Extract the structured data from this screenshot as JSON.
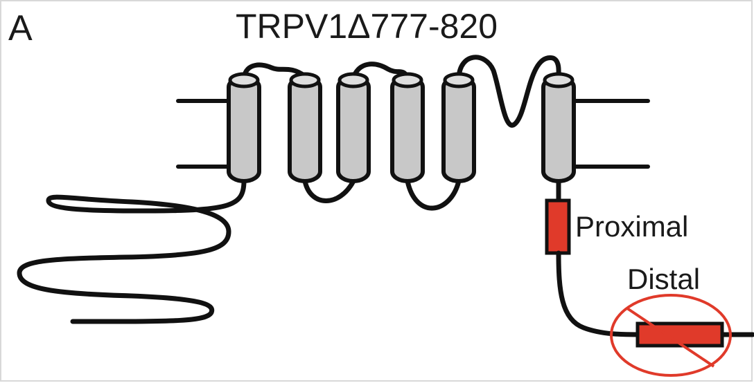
{
  "panel_label": "A",
  "title": "TRPV1Δ777-820",
  "domains": {
    "proximal": "Proximal",
    "distal": "Distal"
  },
  "colors": {
    "helix_fill": "#c8c8c8",
    "domain_fill": "#e03a2a",
    "deletion_circle": "#e03a2a",
    "line": "#111111"
  }
}
